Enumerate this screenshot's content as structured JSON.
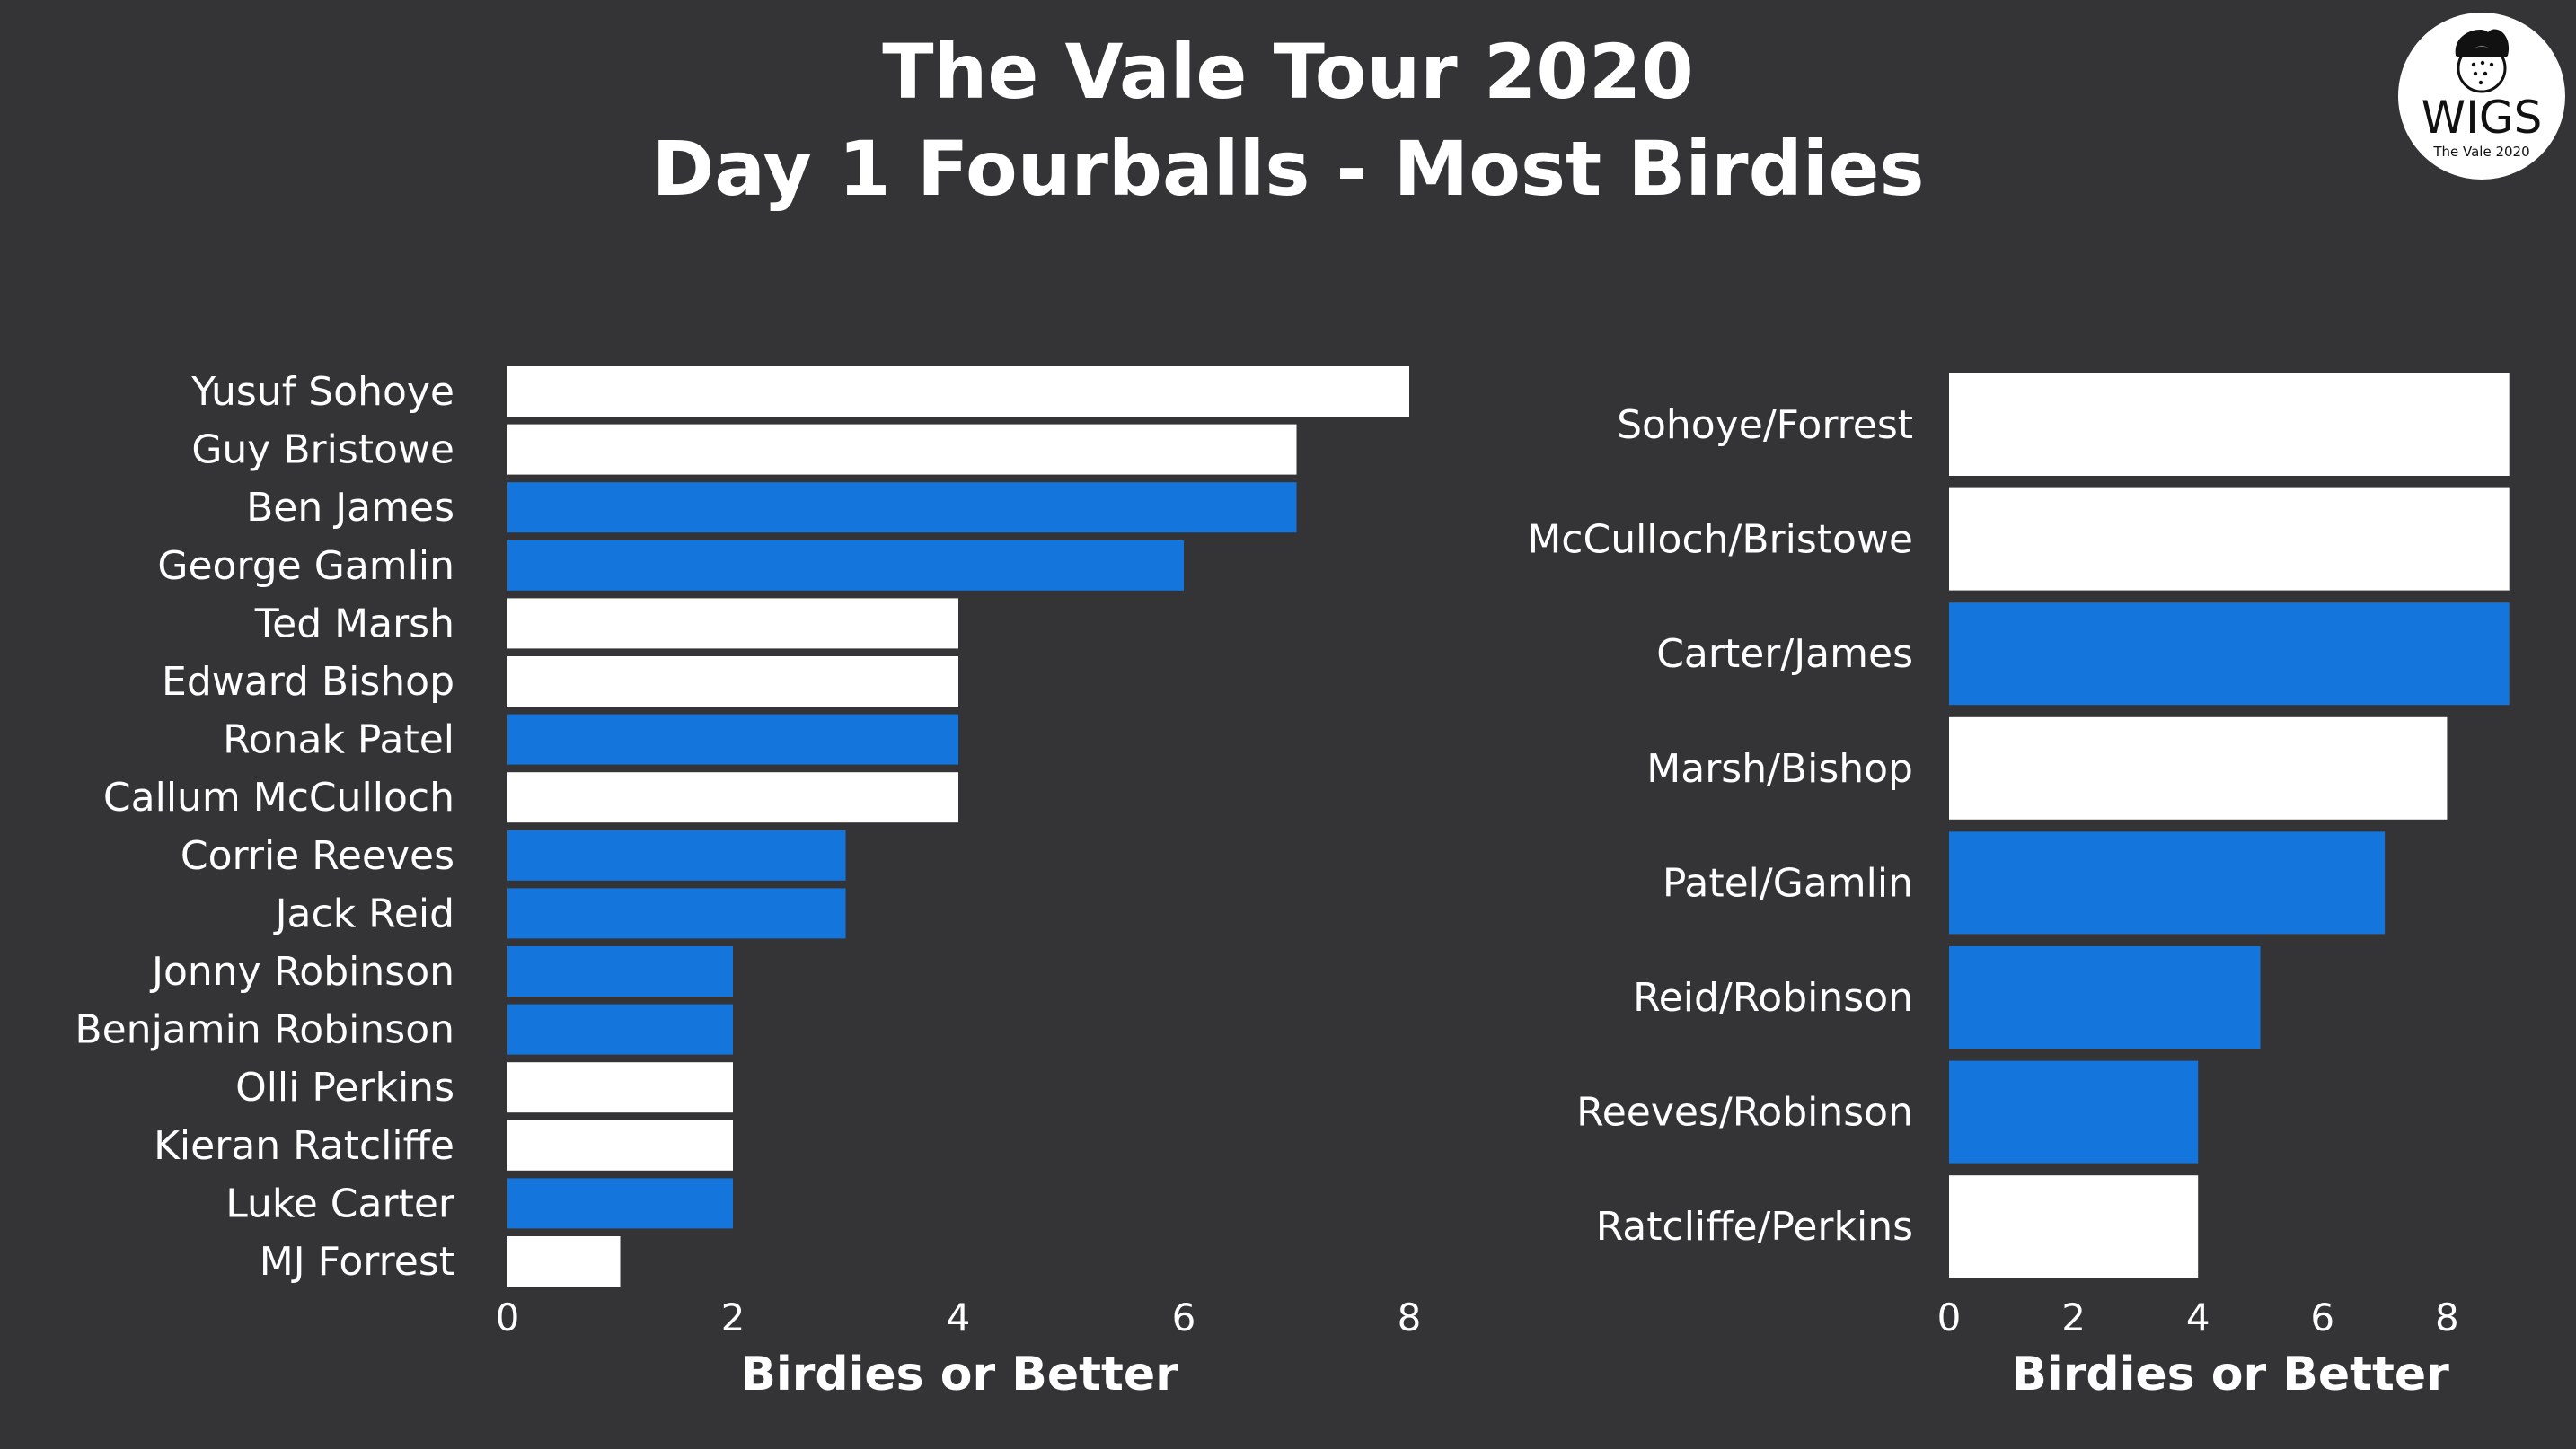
{
  "title": [
    "The Vale Tour 2020",
    "Day 1 Fourballs - Most Birdies"
  ],
  "logo": {
    "text": "WIGS",
    "subtext": "The Vale 2020",
    "icon": "golf-ball-head-icon"
  },
  "colors": {
    "background": "#343437",
    "blue": "#1476dc",
    "white": "#ffffff"
  },
  "chart_data": [
    {
      "type": "bar",
      "orientation": "horizontal",
      "categories": [
        "Yusuf Sohoye",
        "Guy Bristowe",
        "Ben James",
        "George Gamlin",
        "Ted Marsh",
        "Edward Bishop",
        "Ronak Patel",
        "Callum McCulloch",
        "Corrie Reeves",
        "Jack Reid",
        "Jonny Robinson",
        "Benjamin Robinson",
        "Olli Perkins",
        "Kieran Ratcliffe",
        "Luke Carter",
        "MJ Forrest"
      ],
      "values": [
        8,
        7,
        7,
        6,
        4,
        4,
        4,
        4,
        3,
        3,
        2,
        2,
        2,
        2,
        2,
        1
      ],
      "bar_colors": [
        "white",
        "white",
        "blue",
        "blue",
        "white",
        "white",
        "blue",
        "white",
        "blue",
        "blue",
        "blue",
        "blue",
        "white",
        "white",
        "blue",
        "white"
      ],
      "xlabel": "Birdies or Better",
      "xticks": [
        0,
        2,
        4,
        6,
        8
      ],
      "xlim": [
        0,
        8.3
      ]
    },
    {
      "type": "bar",
      "orientation": "horizontal",
      "categories": [
        "Sohoye/Forrest",
        "McCulloch/Bristowe",
        "Carter/James",
        "Marsh/Bishop",
        "Patel/Gamlin",
        "Reid/Robinson",
        "Reeves/Robinson",
        "Ratcliffe/Perkins"
      ],
      "values": [
        9,
        9,
        9,
        8,
        7,
        5,
        4,
        4
      ],
      "bar_colors": [
        "white",
        "white",
        "blue",
        "white",
        "blue",
        "blue",
        "blue",
        "white"
      ],
      "xlabel": "Birdies or Better",
      "xticks": [
        0,
        2,
        4,
        6,
        8
      ],
      "xlim": [
        0,
        9.2
      ]
    }
  ]
}
